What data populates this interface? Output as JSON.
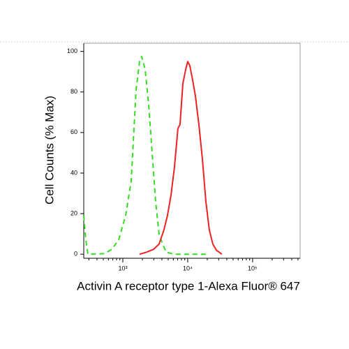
{
  "chart_data": {
    "type": "line",
    "xlabel": "Activin A receptor type 1-Alexa Fluor® 647",
    "ylabel": "Cell Counts (% Max)",
    "xscale": "log",
    "xlim": [
      250,
      540000
    ],
    "ylim": [
      -2,
      104
    ],
    "xticks": [
      {
        "value": 1000,
        "label": "10³"
      },
      {
        "value": 10000,
        "label": "10⁴"
      },
      {
        "value": 100000,
        "label": "10⁵"
      }
    ],
    "xminorticks": [
      300,
      400,
      500,
      600,
      700,
      800,
      900,
      2000,
      3000,
      4000,
      5000,
      6000,
      7000,
      8000,
      9000,
      20000,
      30000,
      40000,
      50000,
      60000,
      70000,
      80000,
      90000,
      200000,
      300000,
      400000,
      500000
    ],
    "yticks": [
      0,
      20,
      40,
      60,
      80,
      100
    ],
    "series": [
      {
        "color": "#33dd22",
        "linestyle": "dashed",
        "x": [
          250,
          269,
          290,
          525,
          673,
          861,
          1104,
          1346,
          1600,
          1810,
          1950,
          2210,
          2500,
          2830,
          3200,
          3620,
          4100,
          4650,
          6250,
          21500
        ],
        "values": [
          19,
          7,
          0,
          0.3,
          2.4,
          7,
          19,
          36,
          81,
          95,
          97.5,
          91,
          74,
          50,
          26,
          10,
          5,
          1,
          0,
          0
        ]
      },
      {
        "color": "#ee2222",
        "linestyle": "solid",
        "x": [
          1810,
          2320,
          2970,
          3620,
          4300,
          4870,
          5520,
          6250,
          7060,
          7620,
          8410,
          9290,
          10000,
          10770,
          11890,
          13130,
          14860,
          16830,
          19050,
          21500,
          24380,
          27600,
          33650
        ],
        "values": [
          0,
          1,
          2.4,
          5,
          12,
          19,
          29,
          43,
          62,
          64,
          84,
          91,
          95,
          93,
          86,
          78,
          64,
          47,
          26,
          12,
          5,
          2,
          0
        ]
      }
    ]
  }
}
